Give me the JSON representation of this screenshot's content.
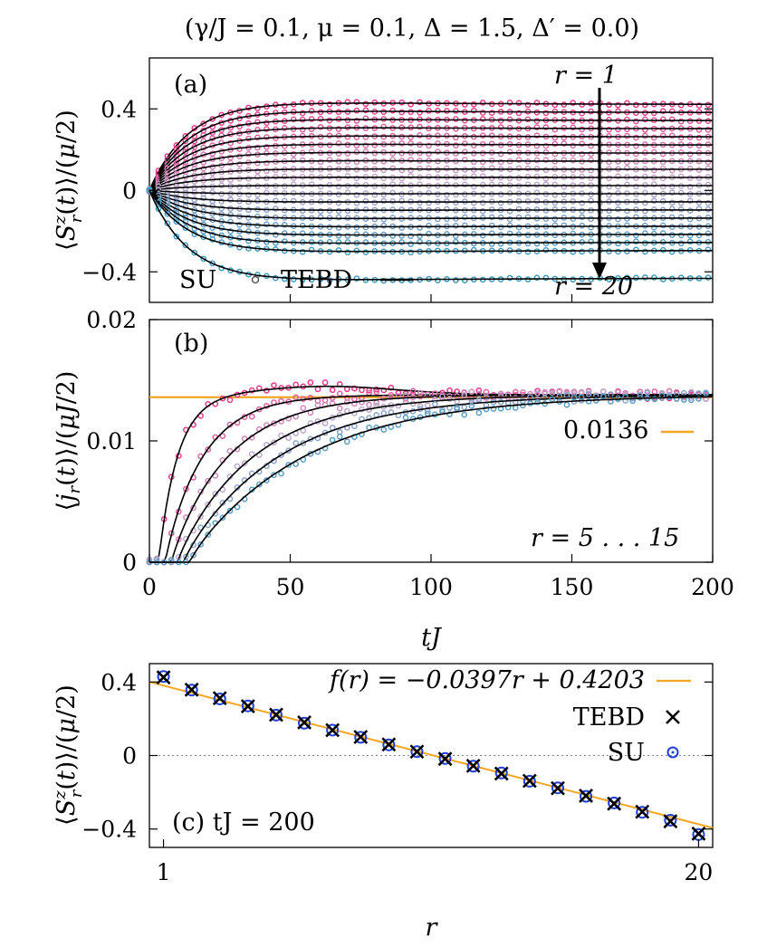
{
  "figure": {
    "title": "(γ/J = 0.1, μ = 0.1, Δ = 1.5, Δ′ = 0.0)"
  },
  "colors": {
    "r_first": "#e8388a",
    "r_mid": "#c6a9cf",
    "r_last": "#3a9cc0",
    "tebd_line": "#000000",
    "fit_line": "#f5a623",
    "su_marker_c": "#1f3fd6",
    "tebd_marker_c": "#000000"
  },
  "chart_data": [
    {
      "id": "a",
      "type": "line",
      "panel_label": "(a)",
      "ylabel": "⟨S_r^z(t)⟩/(μ/2)",
      "xlim": [
        0,
        200
      ],
      "ylim": [
        -0.55,
        0.65
      ],
      "yticks": [
        -0.4,
        0,
        0.4
      ],
      "yticklabels": [
        "−0.4",
        "0",
        "0.4"
      ],
      "legend": {
        "position": "bottom-left",
        "entries": [
          {
            "label": "SU",
            "marker": "circle"
          },
          {
            "label": "TEBD",
            "marker": "line"
          }
        ]
      },
      "annotation_top": "r = 1",
      "annotation_bottom": "r = 20",
      "series_description": "sites r = 1 … 20, SU dots and TEBD lines",
      "r_values": [
        1,
        2,
        3,
        4,
        5,
        6,
        7,
        8,
        9,
        10,
        11,
        12,
        13,
        14,
        15,
        16,
        17,
        18,
        19,
        20
      ],
      "steady_values": [
        0.4203,
        0.3806,
        0.3409,
        0.3012,
        0.2615,
        0.2218,
        0.1821,
        0.1424,
        0.1027,
        0.063,
        0.0233,
        -0.0164,
        -0.0561,
        -0.0958,
        -0.1355,
        -0.1752,
        -0.2149,
        -0.2546,
        -0.2943,
        -0.43
      ]
    },
    {
      "id": "b",
      "type": "line",
      "panel_label": "(b)",
      "ylabel": "⟨j_r(t)⟩/(μJ/2)",
      "xlabel": "tJ",
      "xlim": [
        0,
        200
      ],
      "ylim": [
        0,
        0.02
      ],
      "xticks": [
        0,
        50,
        100,
        150,
        200
      ],
      "xticklabels": [
        "0",
        "50",
        "100",
        "150",
        "200"
      ],
      "yticks": [
        0,
        0.01,
        0.02
      ],
      "yticklabels": [
        "0",
        "0.01",
        "0.02"
      ],
      "reference_line": {
        "value": 0.0136,
        "label": "0.0136"
      },
      "annotation": "r = 5 . . . 15",
      "r_values": [
        5,
        7,
        9,
        11,
        13,
        15
      ],
      "onset_tJ": [
        3,
        5,
        7,
        9,
        11,
        13
      ],
      "steady_value": 0.0138
    },
    {
      "id": "c",
      "type": "scatter",
      "panel_label": "(c) tJ = 200",
      "ylabel": "⟨S_r^z(t)⟩/(μ/2)",
      "xlabel": "r",
      "xlim": [
        0.5,
        20.5
      ],
      "ylim": [
        -0.5,
        0.5
      ],
      "xticks": [
        1,
        20
      ],
      "xticklabels": [
        "1",
        "20"
      ],
      "yticks": [
        -0.4,
        0,
        0.4
      ],
      "yticklabels": [
        "−0.4",
        "0",
        "0.4"
      ],
      "fit": {
        "label": "f(r) = −0.0397r + 0.4203",
        "slope": -0.0397,
        "intercept": 0.4203
      },
      "legend": {
        "position": "top-right",
        "entries": [
          {
            "label": "f(r) = −0.0397r + 0.4203",
            "marker": "line"
          },
          {
            "label": "TEBD",
            "marker": "cross"
          },
          {
            "label": "SU",
            "marker": "circle"
          }
        ]
      },
      "x": [
        1,
        2,
        3,
        4,
        5,
        6,
        7,
        8,
        9,
        10,
        11,
        12,
        13,
        14,
        15,
        16,
        17,
        18,
        19,
        20
      ],
      "tebd": [
        0.425,
        0.358,
        0.312,
        0.268,
        0.222,
        0.18,
        0.138,
        0.101,
        0.06,
        0.021,
        -0.018,
        -0.056,
        -0.098,
        -0.138,
        -0.178,
        -0.219,
        -0.262,
        -0.306,
        -0.358,
        -0.425
      ],
      "su": [
        0.43,
        0.356,
        0.308,
        0.27,
        0.22,
        0.176,
        0.138,
        0.099,
        0.058,
        0.021,
        -0.016,
        -0.058,
        -0.095,
        -0.14,
        -0.176,
        -0.222,
        -0.258,
        -0.309,
        -0.352,
        -0.43
      ]
    }
  ]
}
